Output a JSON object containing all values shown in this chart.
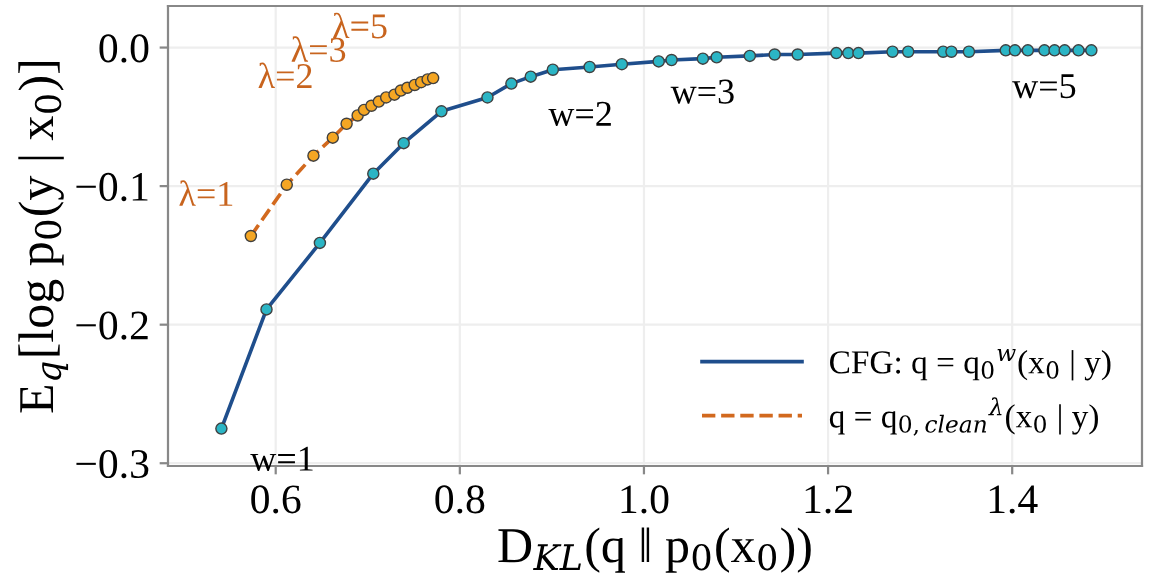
{
  "chart_data": {
    "type": "line",
    "xlabel": "D$_{KL}$(q ‖ p$_{0}$(x$_{0}$))",
    "ylabel": "E$_{q}$[log p$_{0}$(y | x$_{0}$)]",
    "xlim": [
      0.483,
      1.541
    ],
    "ylim": [
      -0.302,
      0.03
    ],
    "xticks": [
      {
        "value": 0.6,
        "label": "0.6"
      },
      {
        "value": 0.8,
        "label": "0.8"
      },
      {
        "value": 1.0,
        "label": "1.0"
      },
      {
        "value": 1.2,
        "label": "1.2"
      },
      {
        "value": 1.4,
        "label": "1.4"
      }
    ],
    "yticks": [
      {
        "value": 0.0,
        "label": "0.0"
      },
      {
        "value": -0.1,
        "label": "−0.1"
      },
      {
        "value": -0.2,
        "label": "−0.2"
      },
      {
        "value": -0.3,
        "label": "−0.3"
      }
    ],
    "grid": true,
    "legend": "bottom right",
    "marker": "circle",
    "series": [
      {
        "name": "CFG: q = q$_{0}$$^{w}$(x$_{0}$ | y)",
        "color": "#1f4e8c",
        "line_style": "solid",
        "x": [
          0.541,
          0.59,
          0.648,
          0.706,
          0.739,
          0.78,
          0.83,
          0.856,
          0.877,
          0.901,
          0.941,
          0.976,
          1.016,
          1.03,
          1.064,
          1.079,
          1.115,
          1.142,
          1.167,
          1.209,
          1.222,
          1.233,
          1.27,
          1.287,
          1.325,
          1.334,
          1.353,
          1.393,
          1.403,
          1.417,
          1.435,
          1.446,
          1.457,
          1.472,
          1.486
        ],
        "values": [
          -0.275,
          -0.189,
          -0.141,
          -0.091,
          -0.069,
          -0.046,
          -0.036,
          -0.026,
          -0.021,
          -0.016,
          -0.014,
          -0.012,
          -0.01,
          -0.009,
          -0.008,
          -0.007,
          -0.006,
          -0.005,
          -0.005,
          -0.004,
          -0.004,
          -0.004,
          -0.003,
          -0.003,
          -0.003,
          -0.003,
          -0.003,
          -0.002,
          -0.002,
          -0.002,
          -0.002,
          -0.002,
          -0.002,
          -0.002,
          -0.002
        ]
      },
      {
        "name": "q = q$_{0,clean}$$^{λ}$(x$_{0}$ | y)",
        "color": "#d2691e",
        "line_style": "dashed",
        "x": [
          0.573,
          0.612,
          0.641,
          0.662,
          0.677,
          0.689,
          0.696,
          0.704,
          0.712,
          0.72,
          0.729,
          0.736,
          0.743,
          0.751,
          0.758,
          0.765,
          0.771
        ],
        "values": [
          -0.136,
          -0.099,
          -0.078,
          -0.065,
          -0.055,
          -0.049,
          -0.045,
          -0.042,
          -0.039,
          -0.036,
          -0.034,
          -0.031,
          -0.029,
          -0.027,
          -0.025,
          -0.023,
          -0.022
        ]
      }
    ],
    "annotations": [
      {
        "text": "w=1",
        "x": 0.541,
        "y": -0.275
      },
      {
        "text": "w=2",
        "x": 0.901,
        "y": -0.016
      },
      {
        "text": "w=3",
        "x": 1.064,
        "y": -0.008
      },
      {
        "text": "w=5",
        "x": 1.435,
        "y": -0.002
      },
      {
        "text": "λ=1",
        "x": 0.573,
        "y": -0.136
      },
      {
        "text": "λ=2",
        "x": 0.662,
        "y": -0.065
      },
      {
        "text": "λ=3",
        "x": 0.704,
        "y": -0.042
      },
      {
        "text": "λ=5",
        "x": 0.758,
        "y": -0.025
      }
    ]
  }
}
